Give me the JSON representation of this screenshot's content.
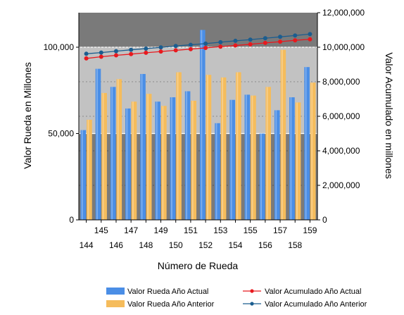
{
  "chart_data": {
    "type": "bar",
    "title": "",
    "xlabel": "Número de Rueda",
    "ylabel": "Valor Rueda en Millones",
    "y2label": "Valor Acumulado en millones",
    "x": [
      144,
      145,
      146,
      147,
      148,
      149,
      150,
      151,
      152,
      153,
      154,
      155,
      156,
      157,
      158,
      159
    ],
    "ylim": [
      0,
      120000
    ],
    "y_ticks": [
      "0",
      "50,000",
      "100,000"
    ],
    "y_tick_values": [
      0,
      50000,
      100000
    ],
    "y2lim": [
      0,
      12000000
    ],
    "y2_ticks": [
      "0",
      "2,000,000",
      "4,000,000",
      "6,000,000",
      "8,000,000",
      "10,000,000",
      "12,000,000"
    ],
    "y2_tick_values": [
      0,
      2000000,
      4000000,
      6000000,
      8000000,
      10000000,
      12000000
    ],
    "background_bands": [
      {
        "from": 0,
        "to": 50000,
        "color": "#7a7a7a"
      },
      {
        "from": 50000,
        "to": 100000,
        "color": "#c2c2c2"
      },
      {
        "from": 100000,
        "to": 120000,
        "color": "#7a7a7a"
      }
    ],
    "grid": true,
    "legend_position": "bottom",
    "series": [
      {
        "name": "Valor Rueda Año Actual",
        "kind": "bar",
        "axis": "left",
        "color": "#4a8ee6",
        "values": [
          52000,
          87500,
          77000,
          64500,
          84500,
          68500,
          71000,
          74500,
          110000,
          56000,
          69500,
          72500,
          50000,
          63500,
          71000,
          88500
        ]
      },
      {
        "name": "Valor Rueda Año Anterior",
        "kind": "bar",
        "axis": "left",
        "color": "#f5bc5c",
        "values": [
          58000,
          73500,
          81500,
          68500,
          73000,
          66000,
          85500,
          69000,
          84000,
          82500,
          85500,
          72000,
          77000,
          98500,
          68000,
          79500
        ]
      },
      {
        "name": "Valor Acumulado Año Actual",
        "kind": "line",
        "axis": "right",
        "color": "#e8191e",
        "values": [
          9350000,
          9450000,
          9530000,
          9600000,
          9680000,
          9750000,
          9820000,
          9890000,
          9960000,
          10030000,
          10100000,
          10170000,
          10250000,
          10320000,
          10400000,
          10460000
        ]
      },
      {
        "name": "Valor Acumulado Año Anterior",
        "kind": "line",
        "axis": "right",
        "color": "#1b5d8f",
        "values": [
          9620000,
          9690000,
          9770000,
          9850000,
          9920000,
          9990000,
          10070000,
          10140000,
          10210000,
          10290000,
          10370000,
          10440000,
          10520000,
          10600000,
          10680000,
          10760000
        ]
      }
    ]
  }
}
